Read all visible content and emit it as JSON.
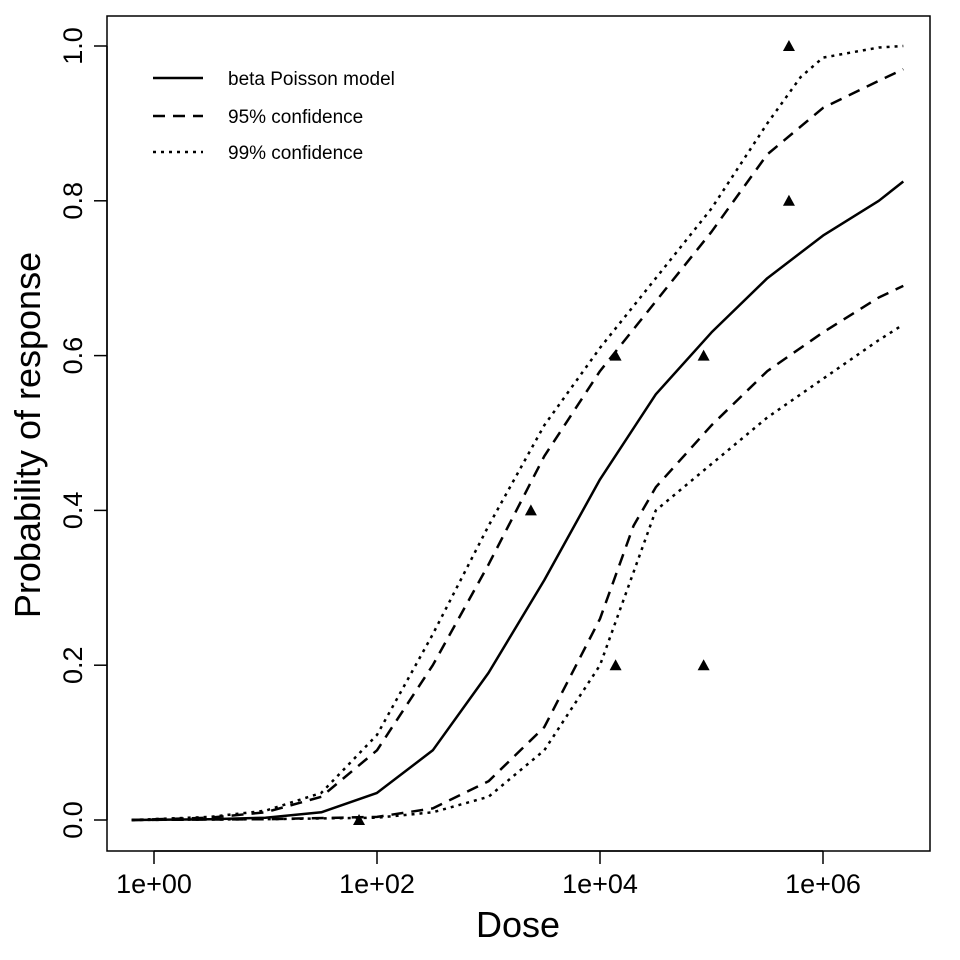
{
  "chart_data": {
    "type": "line",
    "title": "",
    "xlabel": "Dose",
    "ylabel": "Probability of response",
    "xscale": "log10",
    "xlim_log10": [
      -0.5,
      6.9
    ],
    "ylim": [
      -0.04,
      1.04
    ],
    "x_ticks": [
      {
        "log10": 0,
        "label": "1e+00"
      },
      {
        "log10": 2,
        "label": "1e+02"
      },
      {
        "log10": 4,
        "label": "1e+04"
      },
      {
        "log10": 6,
        "label": "1e+06"
      }
    ],
    "y_ticks": [
      {
        "value": 0,
        "label": "0.0"
      },
      {
        "value": 0.2,
        "label": "0.2"
      },
      {
        "value": 0.4,
        "label": "0.4"
      },
      {
        "value": 0.6,
        "label": "0.6"
      },
      {
        "value": 0.8,
        "label": "0.8"
      },
      {
        "value": 1.0,
        "label": "1.0"
      }
    ],
    "grid": false,
    "legend_position": "top-left",
    "series": [
      {
        "name": "beta Poisson model",
        "style": "solid",
        "log10_x": [
          -0.2,
          0.5,
          1,
          1.5,
          2,
          2.5,
          3,
          3.5,
          4,
          4.5,
          5,
          5.5,
          6,
          6.5,
          6.72
        ],
        "y": [
          0,
          0.001,
          0.003,
          0.01,
          0.035,
          0.09,
          0.19,
          0.31,
          0.44,
          0.55,
          0.63,
          0.7,
          0.755,
          0.8,
          0.825
        ]
      },
      {
        "name": "95% confidence",
        "style": "dashed",
        "log10_x": [
          -0.2,
          0.5,
          1,
          1.5,
          2,
          2.5,
          3,
          3.5,
          4,
          4.5,
          5,
          5.5,
          6,
          6.5,
          6.72
        ],
        "y": [
          0,
          0.003,
          0.01,
          0.03,
          0.09,
          0.2,
          0.33,
          0.47,
          0.58,
          0.67,
          0.76,
          0.86,
          0.92,
          0.955,
          0.97
        ]
      },
      {
        "name": "95% confidence",
        "style": "dashed",
        "legend": false,
        "log10_x": [
          -0.2,
          1,
          2,
          2.5,
          3,
          3.5,
          4,
          4.3,
          4.5,
          5,
          5.5,
          6,
          6.5,
          6.72
        ],
        "y": [
          0,
          0.001,
          0.004,
          0.015,
          0.05,
          0.12,
          0.26,
          0.38,
          0.43,
          0.51,
          0.58,
          0.63,
          0.675,
          0.69
        ]
      },
      {
        "name": "99% confidence",
        "style": "dotted",
        "log10_x": [
          -0.2,
          0.5,
          1,
          1.5,
          2,
          2.5,
          3,
          3.5,
          4,
          4.5,
          5,
          5.5,
          5.8,
          6,
          6.5,
          6.72
        ],
        "y": [
          0,
          0.004,
          0.012,
          0.035,
          0.11,
          0.24,
          0.38,
          0.51,
          0.61,
          0.7,
          0.79,
          0.9,
          0.96,
          0.985,
          0.998,
          1.0
        ]
      },
      {
        "name": "99% confidence",
        "style": "dotted",
        "legend": false,
        "log10_x": [
          -0.2,
          1,
          2,
          2.5,
          3,
          3.5,
          4,
          4.3,
          4.5,
          5,
          5.5,
          6,
          6.5,
          6.72
        ],
        "y": [
          0,
          0.001,
          0.003,
          0.01,
          0.03,
          0.09,
          0.2,
          0.32,
          0.4,
          0.46,
          0.52,
          0.57,
          0.62,
          0.64
        ]
      }
    ],
    "points": {
      "marker": "triangle",
      "dose": [
        69,
        2400,
        13800,
        13800,
        85000,
        85000,
        495000,
        495000
      ],
      "y": [
        0,
        0.4,
        0.6,
        0.2,
        0.6,
        0.2,
        0.8,
        1.0
      ]
    },
    "legend": [
      "beta Poisson model",
      "95% confidence",
      "99% confidence"
    ]
  }
}
